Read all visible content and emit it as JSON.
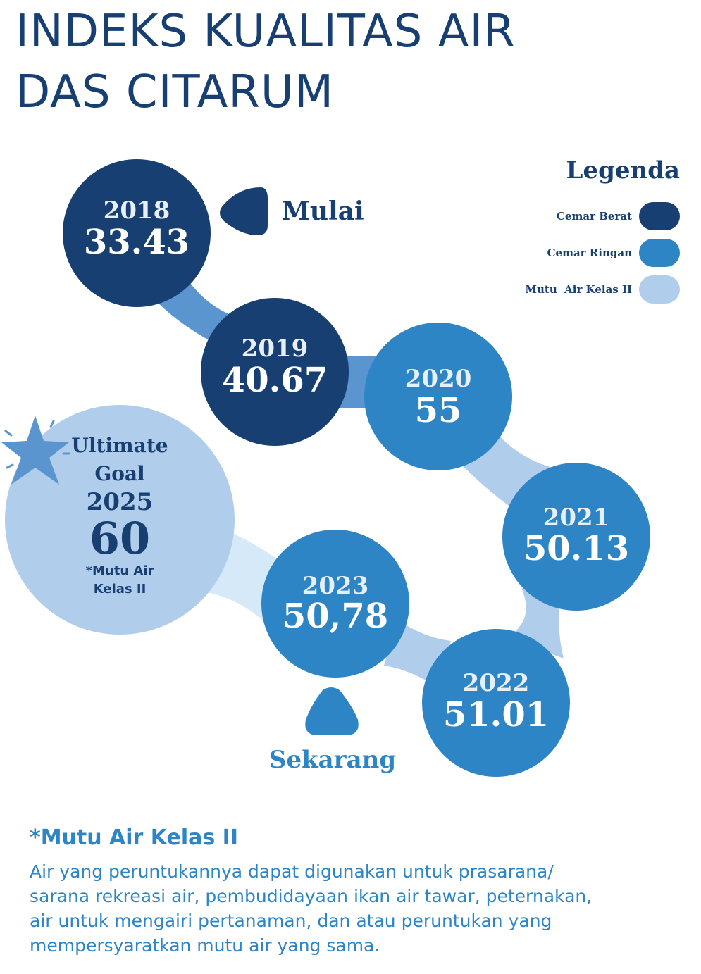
{
  "title": [
    "INDEKS KUALITAS AIR",
    "DAS CITARUM"
  ],
  "colors": {
    "cemar_berat": "#173f72",
    "cemar_ringan": "#2d85c6",
    "mutu_air_kelas_ii": "#b1cdec",
    "connector_mid": "#5b95cf",
    "connector_light": "#d6e9f8",
    "star": "#5b95cf"
  },
  "legend": {
    "title": "Legenda",
    "items": [
      {
        "label": "Cemar Berat",
        "color": "#173f72"
      },
      {
        "label": "Cemar Ringan",
        "color": "#2d85c6"
      },
      {
        "label": "Mutu  Air Kelas II",
        "color": "#b1cdec"
      }
    ]
  },
  "markers": {
    "start": "Mulai",
    "current": "Sekarang"
  },
  "chart_data": {
    "type": "diagram",
    "nodes": [
      {
        "year": "2018",
        "value": "33.43",
        "category": "Cemar Berat"
      },
      {
        "year": "2019",
        "value": "40.67",
        "category": "Cemar Berat"
      },
      {
        "year": "2020",
        "value": "55",
        "category": "Cemar Ringan"
      },
      {
        "year": "2021",
        "value": "50.13",
        "category": "Cemar Ringan"
      },
      {
        "year": "2022",
        "value": "51.01",
        "category": "Cemar Ringan"
      },
      {
        "year": "2023",
        "value": "50,78",
        "category": "Cemar Ringan"
      }
    ],
    "goal": {
      "line1": "Ultimate",
      "line2": "Goal",
      "year": "2025",
      "value": "60",
      "note_line1": "*Mutu Air",
      "note_line2": "Kelas II",
      "category": "Mutu Air Kelas II"
    }
  },
  "footnote": {
    "title": "*Mutu Air Kelas II",
    "lines": [
      "Air yang peruntukannya dapat digunakan untuk prasarana/",
      "sarana rekreasi air, pembudidayaan ikan air tawar, peternakan,",
      "air untuk mengairi pertanaman, dan atau peruntukan yang",
      "mempersyaratkan mutu air yang sama."
    ]
  }
}
